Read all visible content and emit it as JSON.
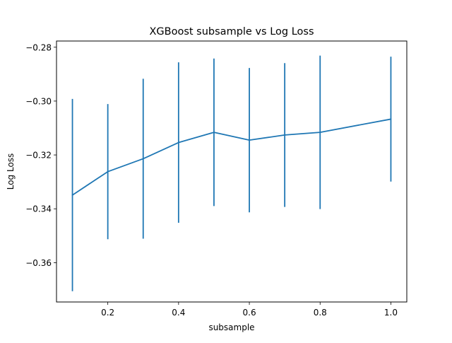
{
  "chart_data": {
    "type": "line",
    "title": "XGBoost subsample vs Log Loss",
    "xlabel": "subsample",
    "ylabel": "Log Loss",
    "xlim": [
      0.055,
      1.045
    ],
    "ylim": [
      -0.3746,
      -0.2777
    ],
    "x_ticks": [
      0.2,
      0.4,
      0.6,
      0.8,
      1.0
    ],
    "x_tick_labels": [
      "0.2",
      "0.4",
      "0.6",
      "0.8",
      "1.0"
    ],
    "y_ticks": [
      -0.36,
      -0.34,
      -0.32,
      -0.3,
      -0.28
    ],
    "y_tick_labels": [
      "−0.36",
      "−0.34",
      "−0.32",
      "−0.30",
      "−0.28"
    ],
    "grid": false,
    "series": [
      {
        "color": "#1f77b4",
        "x": [
          0.1,
          0.2,
          0.3,
          0.4,
          0.5,
          0.6,
          0.7,
          0.8,
          1.0
        ],
        "y": [
          -0.3349,
          -0.3262,
          -0.3214,
          -0.3154,
          -0.3116,
          -0.3145,
          -0.3126,
          -0.3116,
          -0.3067
        ],
        "yerr": [
          0.0357,
          0.0251,
          0.0297,
          0.0298,
          0.0274,
          0.0268,
          0.0267,
          0.0285,
          0.0232
        ]
      }
    ]
  }
}
